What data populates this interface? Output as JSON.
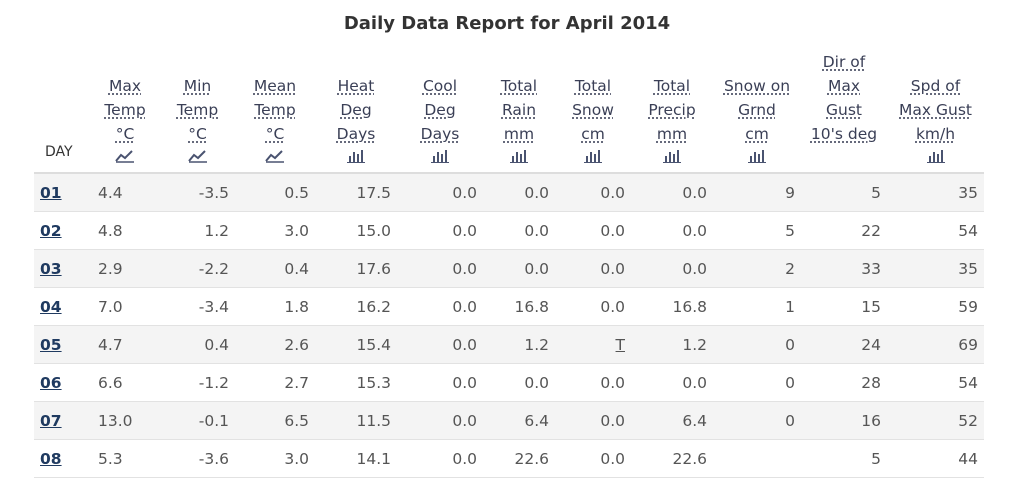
{
  "title": "Daily Data Report for April 2014",
  "columns": [
    {
      "key": "day",
      "lines": [
        "DAY"
      ],
      "icon": ""
    },
    {
      "key": "max",
      "lines": [
        "Max",
        "Temp",
        "°C"
      ],
      "icon": "line-chart-icon"
    },
    {
      "key": "min",
      "lines": [
        "Min",
        "Temp",
        "°C"
      ],
      "icon": "line-chart-icon"
    },
    {
      "key": "mean",
      "lines": [
        "Mean",
        "Temp",
        "°C"
      ],
      "icon": "line-chart-icon"
    },
    {
      "key": "heat",
      "lines": [
        "Heat",
        "Deg",
        "Days"
      ],
      "icon": "bar-chart-icon"
    },
    {
      "key": "cool",
      "lines": [
        "Cool",
        "Deg",
        "Days"
      ],
      "icon": "bar-chart-icon"
    },
    {
      "key": "rain",
      "lines": [
        "Total",
        "Rain",
        "mm"
      ],
      "icon": "bar-chart-icon"
    },
    {
      "key": "snow",
      "lines": [
        "Total",
        "Snow",
        "cm"
      ],
      "icon": "bar-chart-icon"
    },
    {
      "key": "precip",
      "lines": [
        "Total",
        "Precip",
        "mm"
      ],
      "icon": "bar-chart-icon"
    },
    {
      "key": "grnd",
      "lines": [
        "Snow on",
        "Grnd",
        "cm"
      ],
      "icon": "bar-chart-icon"
    },
    {
      "key": "dir",
      "lines": [
        "Dir of",
        "Max",
        "Gust",
        "10's deg"
      ],
      "icon": ""
    },
    {
      "key": "spd",
      "lines": [
        "Spd of",
        "Max Gust",
        "km/h"
      ],
      "icon": "bar-chart-icon"
    }
  ],
  "rows": [
    [
      "01",
      "4.4",
      "-3.5",
      "0.5",
      "17.5",
      "0.0",
      "0.0",
      "0.0",
      "0.0",
      "9",
      "5",
      "35"
    ],
    [
      "02",
      "4.8",
      "1.2",
      "3.0",
      "15.0",
      "0.0",
      "0.0",
      "0.0",
      "0.0",
      "5",
      "22",
      "54"
    ],
    [
      "03",
      "2.9",
      "-2.2",
      "0.4",
      "17.6",
      "0.0",
      "0.0",
      "0.0",
      "0.0",
      "2",
      "33",
      "35"
    ],
    [
      "04",
      "7.0",
      "-3.4",
      "1.8",
      "16.2",
      "0.0",
      "16.8",
      "0.0",
      "16.8",
      "1",
      "15",
      "59"
    ],
    [
      "05",
      "4.7",
      "0.4",
      "2.6",
      "15.4",
      "0.0",
      "1.2",
      "T",
      "1.2",
      "0",
      "24",
      "69"
    ],
    [
      "06",
      "6.6",
      "-1.2",
      "2.7",
      "15.3",
      "0.0",
      "0.0",
      "0.0",
      "0.0",
      "0",
      "28",
      "54"
    ],
    [
      "07",
      "13.0",
      "-0.1",
      "6.5",
      "11.5",
      "0.0",
      "6.4",
      "0.0",
      "6.4",
      "0",
      "16",
      "52"
    ],
    [
      "08",
      "5.3",
      "-3.6",
      "3.0",
      "14.1",
      "0.0",
      "22.6",
      "0.0",
      "22.6",
      "",
      "5",
      "44"
    ]
  ]
}
